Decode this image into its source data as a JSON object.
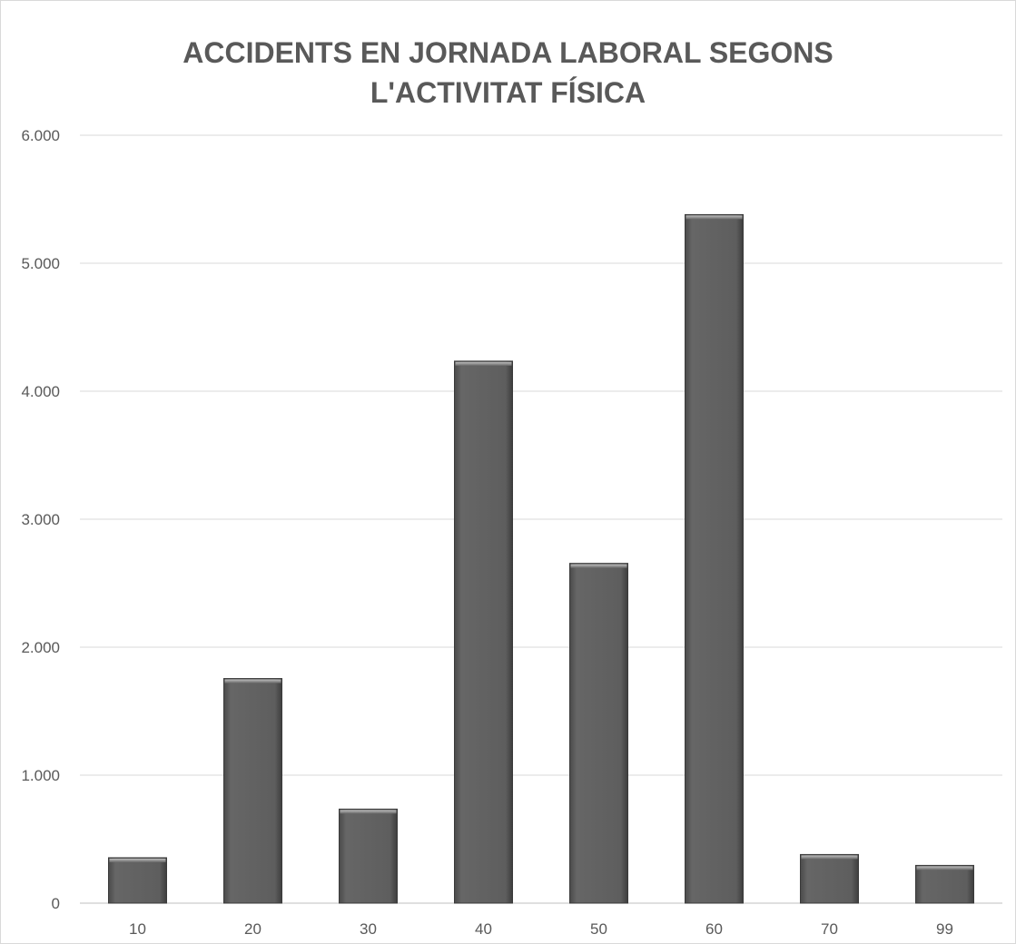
{
  "chart_data": {
    "type": "bar",
    "title": "ACCIDENTS EN JORNADA LABORAL SEGONS L'ACTIVITAT FÍSICA",
    "title_lines": [
      "ACCIDENTS EN JORNADA LABORAL SEGONS",
      "L'ACTIVITAT FÍSICA"
    ],
    "categories": [
      "10",
      "20",
      "30",
      "40",
      "50",
      "60",
      "70",
      "99"
    ],
    "values": [
      355,
      1755,
      735,
      4235,
      2655,
      5380,
      380,
      295
    ],
    "ylim": [
      0,
      6000
    ],
    "y_ticks": [
      0,
      1000,
      2000,
      3000,
      4000,
      5000,
      6000
    ],
    "y_tick_labels": [
      "0",
      "1.000",
      "2.000",
      "3.000",
      "4.000",
      "5.000",
      "6.000"
    ],
    "xlabel": "",
    "ylabel": "",
    "grid": true,
    "legend": "none",
    "bar_color": "#595959"
  }
}
